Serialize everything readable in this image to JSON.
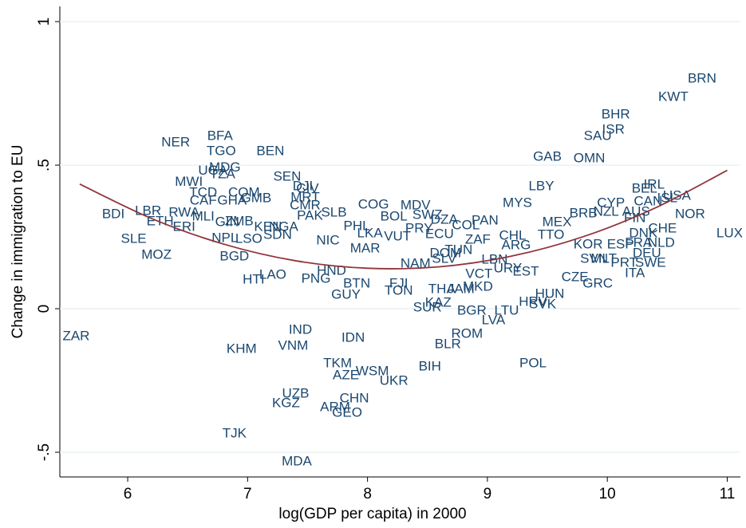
{
  "chart_data": {
    "type": "scatter",
    "xlabel": "log(GDP per capita) in 2000",
    "ylabel": "Change in immigration to EU",
    "xlim": [
      5.434,
      11.11
    ],
    "ylim": [
      -0.586,
      1.053
    ],
    "xticks": [
      6,
      7,
      8,
      9,
      10,
      11
    ],
    "yticks": [
      1,
      {
        "value": 0.5,
        "label": ".5"
      },
      0,
      {
        "value": -0.5,
        "label": "-.5"
      }
    ],
    "grid": true,
    "color": "#1a476f",
    "labels": [
      "BRN",
      "KWT",
      "BHR",
      "ISR",
      "SAU",
      "GAB",
      "OMN",
      "LBY",
      "NER",
      "BFA",
      "TGO",
      "BEN",
      "UGA",
      "MDG",
      "MWI",
      "TZA",
      "SEN",
      "DJI",
      "CIV",
      "TCD",
      "COM",
      "MRT",
      "CAF",
      "GHA",
      "GMB",
      "CMR",
      "COG",
      "MDV",
      "BDI",
      "LBR",
      "RWA",
      "MLI",
      "ETH",
      "ERI",
      "GIN",
      "ZMB",
      "KEN",
      "NGA",
      "PAK",
      "SLB",
      "BOL",
      "PHL",
      "LKA",
      "VUT",
      "SWZ",
      "DZA",
      "COL",
      "ECU",
      "PRY",
      "SDN",
      "NPL",
      "LSO",
      "SLE",
      "MOZ",
      "BGD",
      "NIC",
      "MAR",
      "HTI",
      "LAO",
      "HND",
      "PNG",
      "BTN",
      "GUY",
      "FJI",
      "TON",
      "NAM",
      "SLV",
      "THA",
      "JAM",
      "MKD",
      "KAZ",
      "SUR",
      "BGR",
      "LTU",
      "LVA",
      "ROM",
      "BLR",
      "BIH",
      "POL",
      "HRV",
      "SVK",
      "HUN",
      "CZE",
      "GRC",
      "EST",
      "URY",
      "VCT",
      "LBN",
      "DOM",
      "TUN",
      "ZAF",
      "TTO",
      "ARG",
      "MEX",
      "CHL",
      "PAN",
      "MYS",
      "ZAR",
      "IND",
      "KHM",
      "VNM",
      "IDN",
      "TKM",
      "AZE",
      "WSM",
      "UKR",
      "UZB",
      "KGZ",
      "CHN",
      "ARM",
      "GEO",
      "TJK",
      "MDA",
      "KOR",
      "ESP",
      "SVN",
      "MLT",
      "PRT",
      "ITA",
      "BRB",
      "CYP",
      "NZL",
      "AUS",
      "FIN",
      "IRL",
      "BEL",
      "CAN",
      "ISL",
      "USA",
      "NOR",
      "CHE",
      "LUX",
      "DNK",
      "NLD",
      "DEU",
      "SWE",
      "FRA"
    ],
    "x": [
      10.79,
      10.55,
      10.07,
      10.05,
      9.92,
      9.5,
      9.85,
      9.45,
      6.4,
      6.77,
      6.78,
      7.19,
      6.71,
      6.81,
      6.51,
      6.79,
      7.33,
      7.46,
      7.5,
      6.63,
      6.97,
      7.48,
      6.63,
      6.87,
      7.07,
      7.48,
      8.05,
      8.4,
      5.88,
      6.17,
      6.47,
      6.63,
      6.27,
      6.47,
      6.83,
      6.93,
      7.17,
      7.3,
      7.52,
      7.72,
      8.22,
      7.91,
      8.02,
      8.25,
      8.5,
      8.64,
      8.82,
      8.6,
      8.43,
      7.25,
      6.81,
      7.01,
      6.05,
      6.24,
      6.89,
      7.67,
      7.98,
      7.05,
      7.21,
      7.7,
      7.57,
      7.91,
      7.82,
      8.26,
      8.26,
      8.4,
      8.64,
      8.62,
      8.78,
      8.92,
      8.59,
      8.5,
      8.87,
      9.16,
      9.05,
      8.83,
      8.67,
      8.52,
      9.38,
      9.38,
      9.46,
      9.52,
      9.73,
      9.92,
      9.32,
      9.17,
      8.93,
      9.06,
      8.65,
      8.76,
      8.92,
      9.53,
      9.24,
      9.58,
      9.21,
      8.98,
      9.25,
      5.57,
      7.44,
      6.95,
      7.38,
      7.88,
      7.75,
      7.82,
      8.04,
      8.22,
      7.4,
      7.32,
      7.89,
      7.73,
      7.83,
      6.89,
      7.41,
      9.84,
      10.11,
      9.89,
      9.97,
      10.14,
      10.23,
      9.8,
      10.03,
      9.99,
      10.24,
      10.23,
      10.39,
      10.31,
      10.34,
      10.5,
      10.58,
      10.69,
      10.46,
      11.02,
      10.3,
      10.45,
      10.33,
      10.36,
      10.26
    ],
    "y": [
      0.8,
      0.736,
      0.675,
      0.622,
      0.6,
      0.528,
      0.522,
      0.425,
      0.578,
      0.6,
      0.547,
      0.547,
      0.48,
      0.49,
      0.44,
      0.467,
      0.458,
      0.425,
      0.417,
      0.403,
      0.403,
      0.386,
      0.375,
      0.375,
      0.383,
      0.358,
      0.361,
      0.358,
      0.328,
      0.339,
      0.333,
      0.319,
      0.303,
      0.283,
      0.3,
      0.303,
      0.283,
      0.283,
      0.322,
      0.333,
      0.319,
      0.286,
      0.261,
      0.25,
      0.325,
      0.308,
      0.289,
      0.258,
      0.278,
      0.256,
      0.244,
      0.242,
      0.242,
      0.186,
      0.181,
      0.236,
      0.208,
      0.1,
      0.117,
      0.131,
      0.103,
      0.086,
      0.047,
      0.086,
      0.061,
      0.156,
      0.172,
      0.067,
      0.067,
      0.075,
      0.019,
      0.003,
      -0.008,
      -0.008,
      -0.042,
      -0.089,
      -0.125,
      -0.203,
      -0.192,
      0.022,
      0.014,
      0.05,
      0.108,
      0.086,
      0.128,
      0.139,
      0.119,
      0.169,
      0.192,
      0.203,
      0.239,
      0.256,
      0.219,
      0.3,
      0.253,
      0.306,
      0.367,
      -0.097,
      -0.075,
      -0.142,
      -0.131,
      -0.103,
      -0.192,
      -0.233,
      -0.219,
      -0.253,
      -0.297,
      -0.331,
      -0.314,
      -0.344,
      -0.364,
      -0.436,
      -0.533,
      0.222,
      0.222,
      0.172,
      0.172,
      0.158,
      0.122,
      0.331,
      0.367,
      0.336,
      0.336,
      0.314,
      0.431,
      0.417,
      0.372,
      0.383,
      0.392,
      0.328,
      0.278,
      0.261,
      0.261,
      0.228,
      0.192,
      0.158,
      0.228
    ],
    "fit": {
      "color": "#90353b",
      "x": [
        5.6,
        6.2,
        6.8,
        7.4,
        8.0,
        8.6,
        9.2,
        9.8,
        10.4,
        11.0
      ],
      "y": [
        0.434,
        0.314,
        0.225,
        0.167,
        0.141,
        0.146,
        0.183,
        0.251,
        0.351,
        0.482
      ]
    }
  }
}
